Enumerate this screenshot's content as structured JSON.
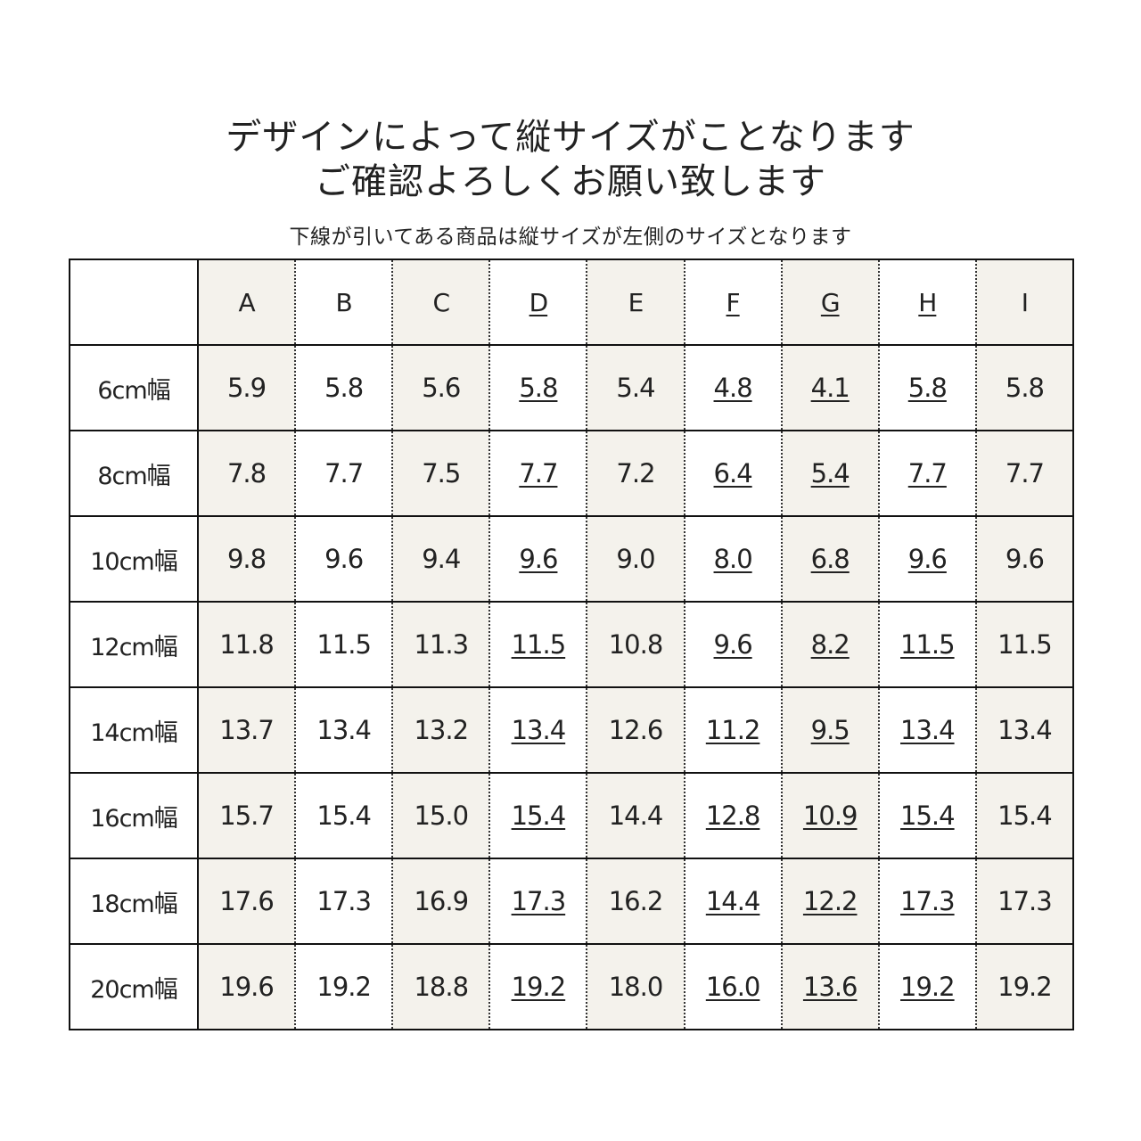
{
  "title_lines": [
    "デザインによって縦サイズがことなります",
    "ご確認よろしくお願い致します"
  ],
  "note": "下線が引いてある商品は縦サイズが左側のサイズとなります",
  "table": {
    "columns": [
      "A",
      "B",
      "C",
      "D",
      "E",
      "F",
      "G",
      "H",
      "I"
    ],
    "underlined_columns": [
      "D",
      "F",
      "G",
      "H"
    ],
    "shaded_columns": [
      "A",
      "C",
      "E",
      "G",
      "I"
    ],
    "shade_color": "#f4f2ec",
    "rows": [
      {
        "label": "6cm幅",
        "values": [
          "5.9",
          "5.8",
          "5.6",
          "5.8",
          "5.4",
          "4.8",
          "4.1",
          "5.8",
          "5.8"
        ]
      },
      {
        "label": "8cm幅",
        "values": [
          "7.8",
          "7.7",
          "7.5",
          "7.7",
          "7.2",
          "6.4",
          "5.4",
          "7.7",
          "7.7"
        ]
      },
      {
        "label": "10cm幅",
        "values": [
          "9.8",
          "9.6",
          "9.4",
          "9.6",
          "9.0",
          "8.0",
          "6.8",
          "9.6",
          "9.6"
        ]
      },
      {
        "label": "12cm幅",
        "values": [
          "11.8",
          "11.5",
          "11.3",
          "11.5",
          "10.8",
          "9.6",
          "8.2",
          "11.5",
          "11.5"
        ]
      },
      {
        "label": "14cm幅",
        "values": [
          "13.7",
          "13.4",
          "13.2",
          "13.4",
          "12.6",
          "11.2",
          "9.5",
          "13.4",
          "13.4"
        ]
      },
      {
        "label": "16cm幅",
        "values": [
          "15.7",
          "15.4",
          "15.0",
          "15.4",
          "14.4",
          "12.8",
          "10.9",
          "15.4",
          "15.4"
        ]
      },
      {
        "label": "18cm幅",
        "values": [
          "17.6",
          "17.3",
          "16.9",
          "17.3",
          "16.2",
          "14.4",
          "12.2",
          "17.3",
          "17.3"
        ]
      },
      {
        "label": "20cm幅",
        "values": [
          "19.6",
          "19.2",
          "18.8",
          "19.2",
          "18.0",
          "16.0",
          "13.6",
          "19.2",
          "19.2"
        ]
      }
    ]
  }
}
